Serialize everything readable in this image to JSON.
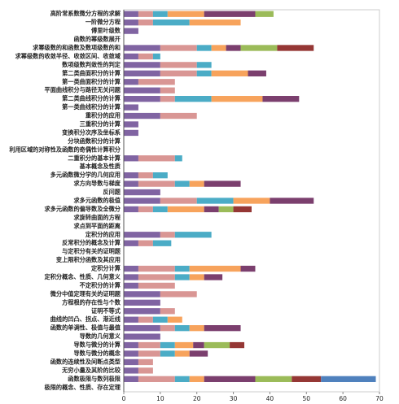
{
  "chart_data": {
    "type": "stacked-barh",
    "categories": [
      "高阶常系数微分方程的求解",
      "一阶微分方程",
      "傅里叶级数",
      "函数的幂级数展开",
      "求幂级数的和函数及数项级数的和",
      "求幂级数的收敛半径、收敛区间、收敛域",
      "数项级数判敛性的判定",
      "第二类曲面积分的计算",
      "第一类曲面积分的计算",
      "平面曲线积分与路径无关问题",
      "第二类曲线积分的计算",
      "第一类曲线积分的计算",
      "重积分的应用",
      "三重积分的计算",
      "变换积分次序及坐标系",
      "分块函数积分的计算",
      "利用区域的对称性及函数的奇偶性计算积分",
      "二重积分的基本计算",
      "基本概念及性质",
      "多元函数微分学的几何应用",
      "求方向导数与梯度",
      "反问题",
      "求多元函数的极值",
      "求多元函数的偏导数及全微分",
      "求旋转曲面的方程",
      "求点到平面的距离",
      "定积分的应用",
      "反常积分的概念及计算",
      "与定积分有关的证明题",
      "变上限积分函数及其应用",
      "定积分计算",
      "定积分概念、性质、几何意义",
      "不定积分的计算",
      "微分中值定理有关的证明题",
      "方程根的存在性与个数",
      "证明不等式",
      "曲线的凹凸、拐点、渐近线",
      "函数的单调性、极值与最值",
      "导数的几何意义",
      "导数与微分的计算",
      "导数与微分的概念",
      "函数的连续性及间断点类型",
      "无穷小量及其阶的比较",
      "函数极限与数列极限",
      "极限的概念、性质、存在定理"
    ],
    "series": [
      {
        "color": "#8064a2",
        "values": [
          4,
          4,
          4,
          0,
          10,
          4,
          10,
          10,
          4,
          10,
          10,
          4,
          10,
          4,
          4,
          0,
          0,
          4,
          0,
          4,
          4,
          10,
          10,
          4,
          0,
          0,
          10,
          4,
          0,
          0,
          4,
          4,
          4,
          10,
          10,
          10,
          4,
          10,
          10,
          4,
          4,
          4,
          4,
          4,
          0
        ]
      },
      {
        "color": "#d99694",
        "values": [
          4,
          4,
          0,
          0,
          10,
          4,
          10,
          10,
          10,
          4,
          4,
          0,
          10,
          0,
          0,
          0,
          0,
          10,
          0,
          4,
          10,
          0,
          10,
          4,
          0,
          0,
          4,
          4,
          0,
          0,
          10,
          10,
          10,
          10,
          0,
          4,
          4,
          4,
          0,
          6,
          6,
          4,
          4,
          10,
          0
        ]
      },
      {
        "color": "#4bacc6",
        "values": [
          4,
          10,
          0,
          0,
          4,
          2,
          4,
          4,
          0,
          0,
          10,
          0,
          0,
          0,
          0,
          0,
          0,
          2,
          0,
          4,
          4,
          0,
          10,
          4,
          0,
          0,
          10,
          5,
          0,
          0,
          4,
          4,
          0,
          0,
          0,
          0,
          4,
          4,
          0,
          4,
          4,
          0,
          0,
          4,
          0
        ]
      },
      {
        "color": "#f7a35c",
        "values": [
          10,
          14,
          0,
          0,
          4,
          0,
          0,
          10,
          0,
          0,
          14,
          0,
          0,
          0,
          0,
          0,
          0,
          0,
          0,
          0,
          4,
          0,
          10,
          10,
          0,
          0,
          0,
          0,
          0,
          0,
          14,
          4,
          0,
          0,
          0,
          0,
          4,
          4,
          0,
          5,
          4,
          0,
          0,
          4,
          0
        ]
      },
      {
        "color": "#7b3f6e",
        "values": [
          14,
          0,
          0,
          0,
          4,
          0,
          0,
          5,
          0,
          0,
          10,
          0,
          0,
          0,
          0,
          0,
          0,
          0,
          0,
          0,
          10,
          0,
          12,
          4,
          0,
          0,
          0,
          0,
          0,
          0,
          4,
          5,
          0,
          0,
          0,
          0,
          0,
          10,
          0,
          3,
          5,
          0,
          0,
          14,
          0
        ]
      },
      {
        "color": "#9bbb59",
        "values": [
          5,
          0,
          0,
          0,
          10,
          0,
          0,
          0,
          0,
          0,
          0,
          0,
          0,
          0,
          0,
          0,
          0,
          0,
          0,
          0,
          0,
          0,
          0,
          4,
          0,
          0,
          0,
          0,
          0,
          0,
          0,
          0,
          0,
          0,
          0,
          0,
          0,
          0,
          0,
          7,
          0,
          0,
          0,
          10,
          0
        ]
      },
      {
        "color": "#953735",
        "values": [
          0,
          0,
          0,
          0,
          10,
          0,
          0,
          0,
          0,
          0,
          0,
          0,
          0,
          0,
          0,
          0,
          0,
          0,
          0,
          0,
          0,
          0,
          0,
          5,
          0,
          0,
          0,
          0,
          0,
          0,
          0,
          0,
          0,
          0,
          0,
          0,
          0,
          0,
          0,
          4,
          0,
          0,
          0,
          8,
          0
        ]
      },
      {
        "color": "#4f81bd",
        "values": [
          0,
          0,
          0,
          0,
          0,
          0,
          0,
          0,
          0,
          0,
          0,
          0,
          0,
          0,
          0,
          0,
          0,
          0,
          0,
          0,
          0,
          0,
          0,
          0,
          0,
          0,
          0,
          0,
          0,
          0,
          0,
          0,
          0,
          0,
          0,
          0,
          0,
          0,
          0,
          0,
          0,
          0,
          0,
          15,
          0
        ]
      }
    ],
    "xlim": [
      0,
      70
    ],
    "xticks": [
      0,
      10,
      20,
      30,
      40,
      50,
      60,
      70
    ],
    "grid": false
  }
}
